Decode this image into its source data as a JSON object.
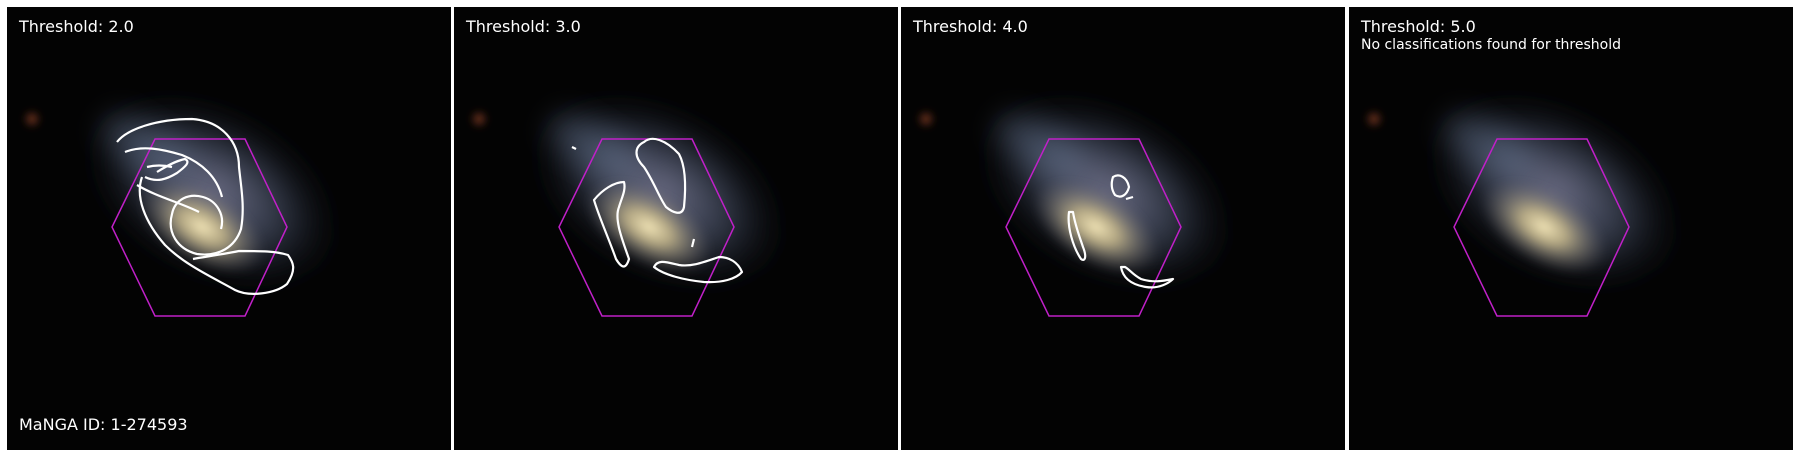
{
  "colors": {
    "hexagon": "#c020c8",
    "contour": "#ffffff",
    "text": "#ffffff",
    "background": "#030303"
  },
  "panels": [
    {
      "threshold_label": "Threshold: 2.0",
      "note": "",
      "manga_id": "MaNGA ID: 1-274593"
    },
    {
      "threshold_label": "Threshold: 3.0",
      "note": "",
      "manga_id": ""
    },
    {
      "threshold_label": "Threshold: 4.0",
      "note": "",
      "manga_id": ""
    },
    {
      "threshold_label": "Threshold: 5.0",
      "note": "No classifications found for threshold",
      "manga_id": ""
    }
  ]
}
